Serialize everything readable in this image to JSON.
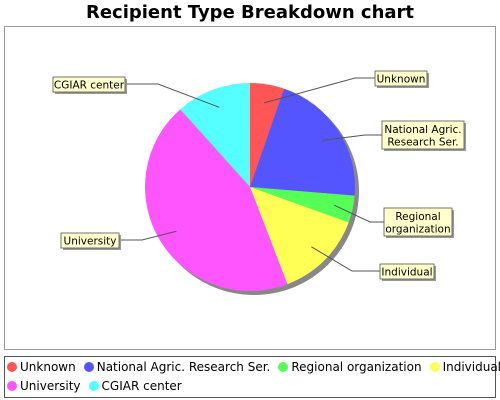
{
  "chart_data": {
    "type": "pie",
    "title": "Recipient Type Breakdown chart",
    "slices": [
      {
        "name": "Unknown",
        "value": 5,
        "color": "#ff5555",
        "label_lines": [
          "Unknown"
        ]
      },
      {
        "name": "National Agric. Research Ser.",
        "value": 20,
        "color": "#5555ff",
        "label_lines": [
          "National Agric.",
          "Research Ser."
        ]
      },
      {
        "name": "Regional organization",
        "value": 4,
        "color": "#55ff55",
        "label_lines": [
          "Regional",
          "organization"
        ]
      },
      {
        "name": "Individual",
        "value": 13,
        "color": "#ffff55",
        "label_lines": [
          "Individual"
        ]
      },
      {
        "name": "University",
        "value": 42,
        "color": "#ff55ff",
        "label_lines": [
          "University"
        ]
      },
      {
        "name": "CGIAR center",
        "value": 11,
        "color": "#55ffff",
        "label_lines": [
          "CGIAR center"
        ]
      }
    ],
    "legend_position": "bottom"
  },
  "colors": {
    "label_box_fill": "#ffffcc",
    "leader_line": "#555555"
  }
}
